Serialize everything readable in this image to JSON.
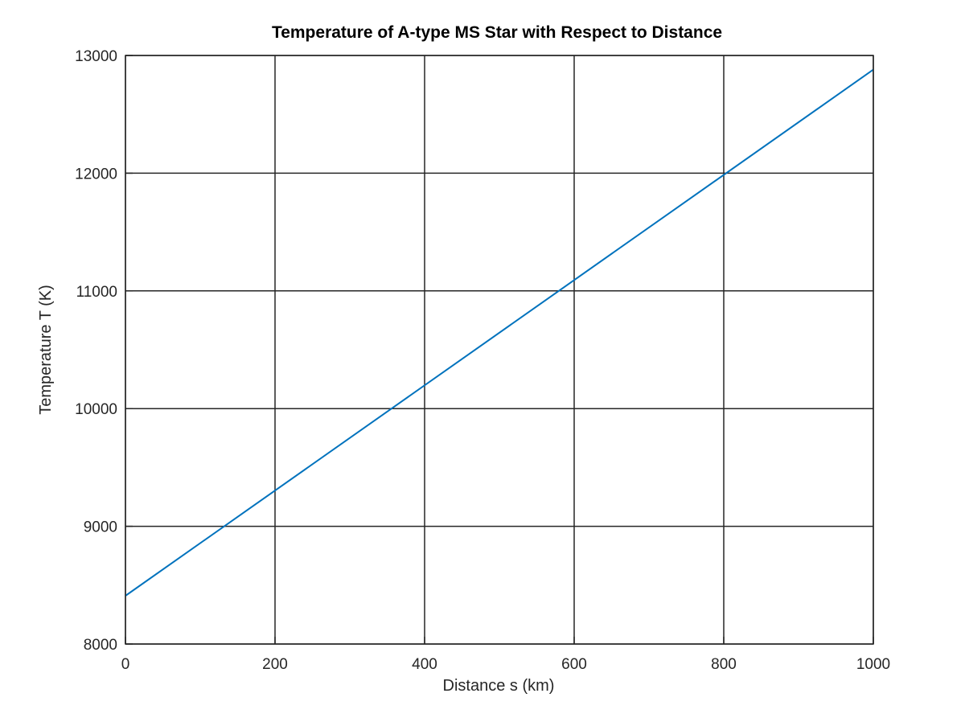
{
  "chart_data": {
    "type": "line",
    "title": "Temperature of A-type MS Star with Respect to Distance",
    "xlabel": "Distance s (km)",
    "ylabel": "Temperature T (K)",
    "xlim": [
      0,
      1000
    ],
    "ylim": [
      8000,
      13000
    ],
    "xticks": [
      0,
      200,
      400,
      600,
      800,
      1000
    ],
    "xtick_labels": [
      "0",
      "200",
      "400",
      "600",
      "800",
      "1000"
    ],
    "yticks": [
      8000,
      9000,
      10000,
      11000,
      12000,
      13000
    ],
    "ytick_labels": [
      "8000",
      "9000",
      "10000",
      "11000",
      "12000",
      "13000"
    ],
    "grid": true,
    "series": [
      {
        "color": "#0072BD",
        "x": [
          0,
          1000
        ],
        "y": [
          8410,
          12880
        ]
      }
    ]
  }
}
